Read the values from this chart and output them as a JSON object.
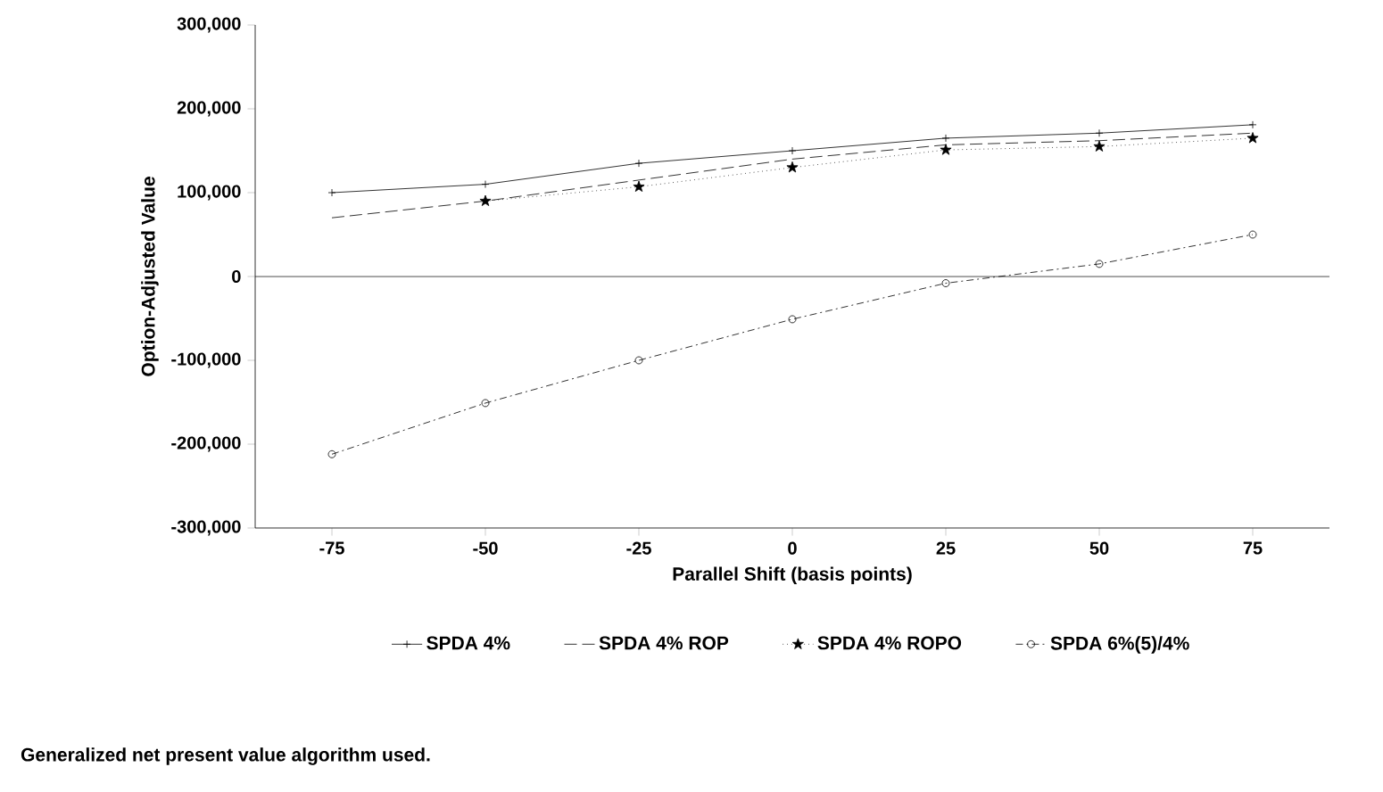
{
  "chart_data": {
    "type": "line",
    "xlabel": "Parallel Shift (basis points)",
    "ylabel": "Option-Adjusted Value",
    "x": [
      -75,
      -50,
      -25,
      0,
      25,
      50,
      75
    ],
    "series": [
      {
        "name": "SPDA 4%",
        "color": "#000000",
        "values": [
          100000,
          110000,
          135000,
          150000,
          165000,
          171000,
          181000
        ],
        "marker": "cross",
        "line_style": "solid"
      },
      {
        "name": "SPDA 4% ROP",
        "color": "#000000",
        "values": [
          70000,
          90000,
          115000,
          140000,
          157000,
          162000,
          171000
        ],
        "marker": "none",
        "line_style": "dashed"
      },
      {
        "name": "SPDA 4% ROPO",
        "color": "#000000",
        "values": [
          null,
          90000,
          107000,
          130000,
          151000,
          155000,
          165000
        ],
        "marker": "star",
        "line_style": "dotted"
      },
      {
        "name": "SPDA 6%(5)/4%",
        "color": "#000000",
        "values": [
          -212000,
          -151000,
          -100000,
          -51000,
          -8000,
          15000,
          50000
        ],
        "marker": "circle",
        "line_style": "dashdot"
      }
    ],
    "xlim": [
      -87.5,
      87.5
    ],
    "xticks": [
      -75,
      -50,
      -25,
      0,
      25,
      50,
      75
    ],
    "ylim": [
      -300000,
      300000
    ],
    "yticks": [
      {
        "value": -300000,
        "label": "-300,000"
      },
      {
        "value": -200000,
        "label": "-200,000"
      },
      {
        "value": -100000,
        "label": "-100,000"
      },
      0,
      {
        "value": 100000,
        "label": "100,000"
      },
      {
        "value": 200000,
        "label": "200,000"
      },
      {
        "value": 300000,
        "label": "300,000"
      }
    ],
    "ref_lines": [
      {
        "axis": "y",
        "value": 0,
        "color": "#000000"
      }
    ],
    "grid": false,
    "legend": "bottom",
    "annotations": [
      "Generalized net present value algorithm used."
    ]
  }
}
